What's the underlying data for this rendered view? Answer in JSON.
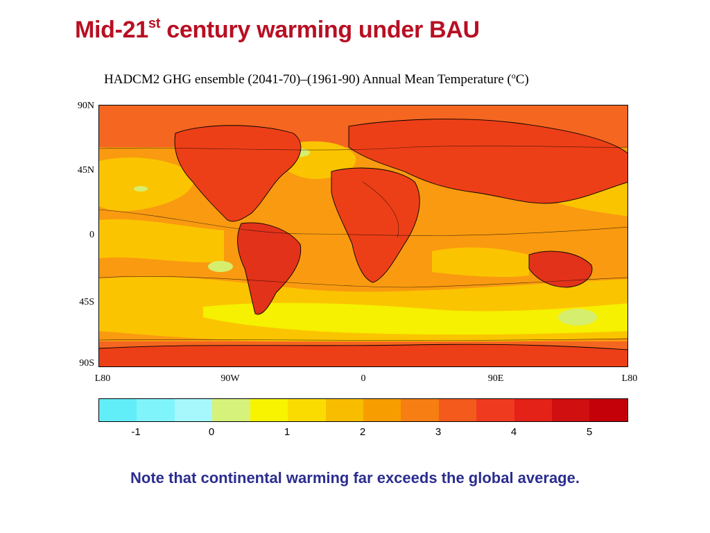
{
  "slide": {
    "title_prefix": "Mid-21",
    "title_superscript": "st",
    "title_suffix": " century warming under BAU",
    "note": "Note that continental warming far exceeds the global average."
  },
  "map": {
    "title_main": "HADCM2 GHG ensemble (2041-70)–(1961-90) Annual Mean Temperature (",
    "title_degree": "o",
    "title_unit": "C)",
    "lat_labels": [
      "90N",
      "45N",
      "0",
      "45S",
      "90S"
    ],
    "lon_labels": [
      "L80",
      "90W",
      "0",
      "90E",
      "L80"
    ],
    "colors": {
      "ocean_mid": "#fbc400",
      "ocean_warm": "#f99a10",
      "land_hot": "#ec3f17",
      "land_hotter": "#e2321a",
      "polar": "#f56620",
      "cool_band": "#f5f100",
      "cold_patch": "#d6ee6e"
    }
  },
  "colorbar": {
    "colors": [
      "#62eef9",
      "#80f4fb",
      "#a6f8fc",
      "#d6f27a",
      "#f8f400",
      "#fadc00",
      "#f9bd00",
      "#f89d00",
      "#f67e12",
      "#f45a1c",
      "#f03a20",
      "#e52218",
      "#cf0f10",
      "#c40008"
    ],
    "tick_labels": [
      "-1",
      "0",
      "1",
      "2",
      "3",
      "4",
      "5"
    ]
  }
}
